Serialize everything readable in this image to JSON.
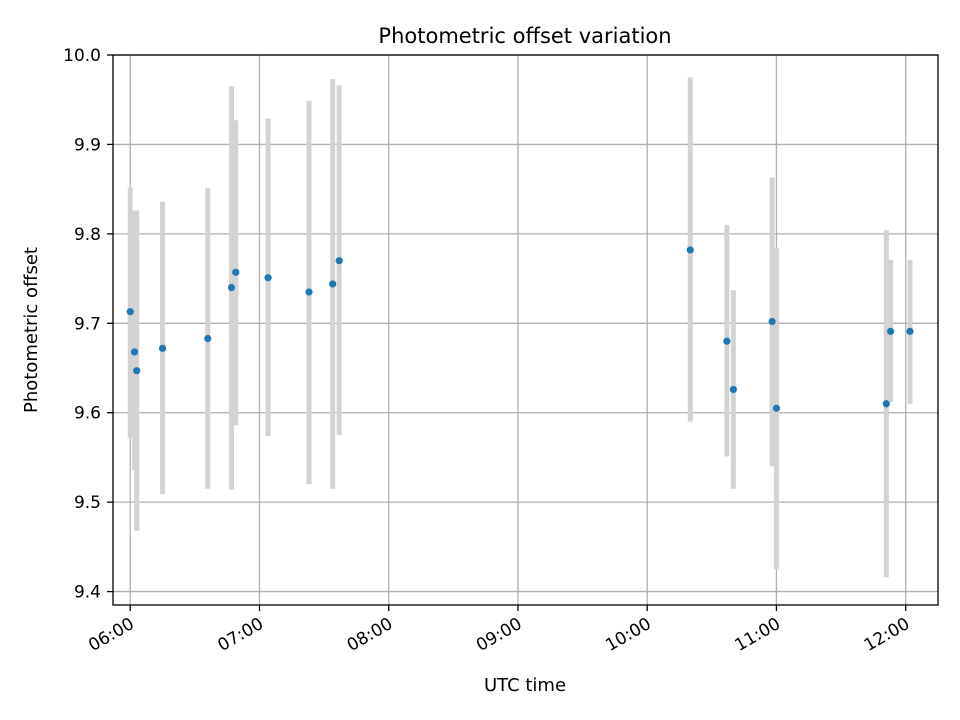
{
  "chart_data": {
    "type": "scatter",
    "title": "Photometric offset variation",
    "xlabel": "UTC time",
    "ylabel": "Photometric offset",
    "x_is_time": true,
    "xlim": [
      "05:52",
      "12:15"
    ],
    "ylim": [
      9.385,
      10.0
    ],
    "xticks": [
      "06:00",
      "07:00",
      "08:00",
      "09:00",
      "10:00",
      "11:00",
      "12:00"
    ],
    "yticks": [
      9.4,
      9.5,
      9.6,
      9.7,
      9.8,
      9.9,
      10.0
    ],
    "ytick_labels": [
      "9.4",
      "9.5",
      "9.6",
      "9.7",
      "9.8",
      "9.9",
      "10.0"
    ],
    "grid": true,
    "colors": {
      "point": "#1f77b4",
      "errorbar": "#d3d3d3",
      "grid": "#b0b0b0"
    },
    "points": [
      {
        "time": "06:00",
        "value": 9.713,
        "low": 9.572,
        "high": 9.852
      },
      {
        "time": "06:02",
        "value": 9.668,
        "low": 9.536,
        "high": 9.826
      },
      {
        "time": "06:03",
        "value": 9.647,
        "low": 9.468,
        "high": 9.826
      },
      {
        "time": "06:15",
        "value": 9.672,
        "low": 9.509,
        "high": 9.836
      },
      {
        "time": "06:36",
        "value": 9.683,
        "low": 9.515,
        "high": 9.851
      },
      {
        "time": "06:47",
        "value": 9.74,
        "low": 9.514,
        "high": 9.965
      },
      {
        "time": "06:49",
        "value": 9.757,
        "low": 9.586,
        "high": 9.927
      },
      {
        "time": "07:04",
        "value": 9.751,
        "low": 9.574,
        "high": 9.929
      },
      {
        "time": "07:23",
        "value": 9.735,
        "low": 9.52,
        "high": 9.949
      },
      {
        "time": "07:34",
        "value": 9.744,
        "low": 9.515,
        "high": 9.973
      },
      {
        "time": "07:37",
        "value": 9.77,
        "low": 9.575,
        "high": 9.966
      },
      {
        "time": "10:20",
        "value": 9.782,
        "low": 9.59,
        "high": 9.975
      },
      {
        "time": "10:37",
        "value": 9.68,
        "low": 9.551,
        "high": 9.81
      },
      {
        "time": "10:40",
        "value": 9.626,
        "low": 9.515,
        "high": 9.737
      },
      {
        "time": "10:58",
        "value": 9.702,
        "low": 9.54,
        "high": 9.863
      },
      {
        "time": "11:00",
        "value": 9.605,
        "low": 9.425,
        "high": 9.784
      },
      {
        "time": "11:51",
        "value": 9.61,
        "low": 9.416,
        "high": 9.804
      },
      {
        "time": "11:53",
        "value": 9.691,
        "low": 9.612,
        "high": 9.771
      },
      {
        "time": "12:02",
        "value": 9.691,
        "low": 9.61,
        "high": 9.771
      }
    ]
  }
}
